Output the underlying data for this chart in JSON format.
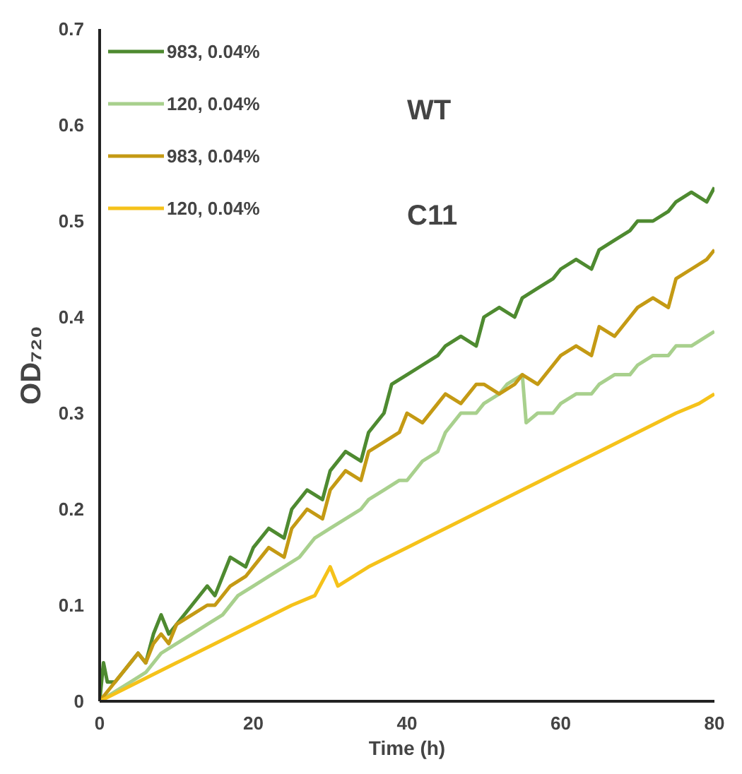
{
  "chart_data": {
    "type": "line",
    "xlabel": "Time (h)",
    "ylabel": "OD₇₂₀",
    "xlim": [
      0,
      80
    ],
    "ylim": [
      0,
      0.7
    ],
    "xticks": [
      0,
      20,
      40,
      60,
      80
    ],
    "yticks": [
      0,
      0.1,
      0.2,
      0.3,
      0.4,
      0.5,
      0.6,
      0.7
    ],
    "grid": false,
    "legend": "top left",
    "annotations": [
      "WT",
      "C11"
    ],
    "series": [
      {
        "name": "983, 0.04%",
        "color": "#4e8a30",
        "x": [
          0,
          0.5,
          1,
          2,
          3,
          4,
          5,
          6,
          7,
          8,
          9,
          10,
          12,
          14,
          15,
          17,
          19,
          20,
          22,
          24,
          25,
          27,
          29,
          30,
          32,
          34,
          35,
          37,
          38,
          40,
          42,
          44,
          45,
          47,
          49,
          50,
          52,
          54,
          55,
          57,
          59,
          60,
          62,
          64,
          65,
          67,
          69,
          70,
          72,
          74,
          75,
          77,
          79,
          80
        ],
        "values": [
          0,
          0.04,
          0.02,
          0.02,
          0.03,
          0.04,
          0.05,
          0.04,
          0.07,
          0.09,
          0.07,
          0.08,
          0.1,
          0.12,
          0.11,
          0.15,
          0.14,
          0.16,
          0.18,
          0.17,
          0.2,
          0.22,
          0.21,
          0.24,
          0.26,
          0.25,
          0.28,
          0.3,
          0.33,
          0.34,
          0.35,
          0.36,
          0.37,
          0.38,
          0.37,
          0.4,
          0.41,
          0.4,
          0.42,
          0.43,
          0.44,
          0.45,
          0.46,
          0.45,
          0.47,
          0.48,
          0.49,
          0.5,
          0.5,
          0.51,
          0.52,
          0.53,
          0.52,
          0.535
        ]
      },
      {
        "name": "120, 0.04%",
        "color": "#a8d08d",
        "x": [
          0,
          2,
          4,
          6,
          8,
          10,
          12,
          14,
          16,
          18,
          20,
          22,
          24,
          26,
          28,
          30,
          32,
          34,
          35,
          37,
          39,
          40,
          42,
          44,
          45,
          47,
          49,
          50,
          52,
          53,
          55,
          55.5,
          57,
          59,
          60,
          62,
          64,
          65,
          67,
          69,
          70,
          72,
          74,
          75,
          77,
          79,
          80
        ],
        "values": [
          0,
          0.01,
          0.02,
          0.03,
          0.05,
          0.06,
          0.07,
          0.08,
          0.09,
          0.11,
          0.12,
          0.13,
          0.14,
          0.15,
          0.17,
          0.18,
          0.19,
          0.2,
          0.21,
          0.22,
          0.23,
          0.23,
          0.25,
          0.26,
          0.28,
          0.3,
          0.3,
          0.31,
          0.32,
          0.33,
          0.34,
          0.29,
          0.3,
          0.3,
          0.31,
          0.32,
          0.32,
          0.33,
          0.34,
          0.34,
          0.35,
          0.36,
          0.36,
          0.37,
          0.37,
          0.38,
          0.385
        ]
      },
      {
        "name": "983, 0.04%",
        "color": "#c49a14",
        "x": [
          0,
          2,
          4,
          5,
          6,
          7,
          8,
          9,
          10,
          12,
          14,
          15,
          17,
          19,
          20,
          22,
          24,
          25,
          27,
          29,
          30,
          32,
          34,
          35,
          37,
          39,
          40,
          42,
          44,
          45,
          47,
          49,
          50,
          52,
          54,
          55,
          57,
          59,
          60,
          62,
          64,
          65,
          67,
          69,
          70,
          72,
          74,
          75,
          77,
          79,
          80
        ],
        "values": [
          0,
          0.02,
          0.04,
          0.05,
          0.04,
          0.06,
          0.07,
          0.06,
          0.08,
          0.09,
          0.1,
          0.1,
          0.12,
          0.13,
          0.14,
          0.16,
          0.15,
          0.18,
          0.2,
          0.19,
          0.22,
          0.24,
          0.23,
          0.26,
          0.27,
          0.28,
          0.3,
          0.29,
          0.31,
          0.32,
          0.31,
          0.33,
          0.33,
          0.32,
          0.33,
          0.34,
          0.33,
          0.35,
          0.36,
          0.37,
          0.36,
          0.39,
          0.38,
          0.4,
          0.41,
          0.42,
          0.41,
          0.44,
          0.45,
          0.46,
          0.47
        ]
      },
      {
        "name": "120, 0.04%",
        "color": "#f5c21a",
        "x": [
          0,
          5,
          10,
          15,
          20,
          25,
          28,
          30,
          31,
          35,
          40,
          45,
          50,
          55,
          60,
          65,
          70,
          75,
          78,
          80
        ],
        "values": [
          0,
          0.02,
          0.04,
          0.06,
          0.08,
          0.1,
          0.11,
          0.14,
          0.12,
          0.14,
          0.16,
          0.18,
          0.2,
          0.22,
          0.24,
          0.26,
          0.28,
          0.3,
          0.31,
          0.32
        ]
      }
    ]
  }
}
